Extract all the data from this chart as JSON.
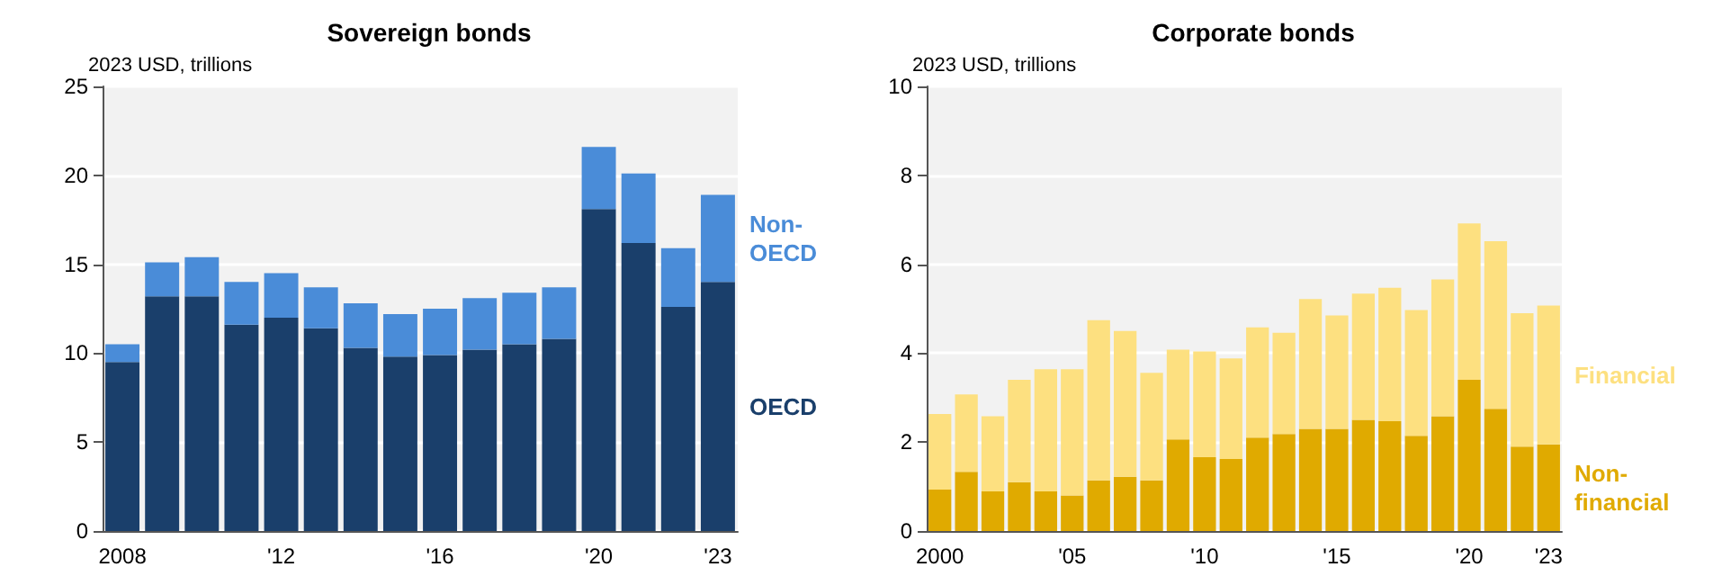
{
  "chart_data": [
    {
      "type": "bar",
      "title": "Sovereign bonds",
      "ylabel": "2023 USD, trillions",
      "categories": [
        "2008",
        null,
        null,
        null,
        "'12",
        null,
        null,
        null,
        "'16",
        null,
        null,
        null,
        "'20",
        null,
        null,
        "'23"
      ],
      "stacked": true,
      "ylim": [
        0,
        25
      ],
      "yticks": [
        0,
        5,
        10,
        15,
        20,
        25
      ],
      "grid": "y",
      "legend": "right",
      "series": [
        {
          "name": "OECD",
          "color": "#1a3f6b",
          "values": [
            9.5,
            13.2,
            13.2,
            11.6,
            12.0,
            11.4,
            10.3,
            9.8,
            9.9,
            10.2,
            10.5,
            10.8,
            18.1,
            16.2,
            12.6,
            14.0
          ]
        },
        {
          "name": "Non-OECD",
          "color": "#4a8cd8",
          "values": [
            1.0,
            1.9,
            2.2,
            2.4,
            2.5,
            2.3,
            2.5,
            2.4,
            2.6,
            2.9,
            2.9,
            2.9,
            3.5,
            3.9,
            3.3,
            4.9
          ]
        }
      ]
    },
    {
      "type": "bar",
      "title": "Corporate bonds",
      "ylabel": "2023 USD, trillions",
      "categories": [
        "2000",
        null,
        null,
        null,
        null,
        "'05",
        null,
        null,
        null,
        null,
        "'10",
        null,
        null,
        null,
        null,
        "'15",
        null,
        null,
        null,
        null,
        "'20",
        null,
        null,
        "'23"
      ],
      "stacked": true,
      "ylim": [
        0,
        10
      ],
      "yticks": [
        0,
        2,
        4,
        6,
        8,
        10
      ],
      "grid": "y",
      "legend": "right",
      "series": [
        {
          "name": "Non-financial",
          "color": "#e0aa00",
          "values": [
            0.93,
            1.33,
            0.89,
            1.1,
            0.89,
            0.8,
            1.14,
            1.22,
            1.14,
            2.06,
            1.66,
            1.62,
            2.1,
            2.18,
            2.3,
            2.3,
            2.5,
            2.47,
            2.14,
            2.58,
            3.4,
            2.75,
            1.9,
            1.95
          ]
        },
        {
          "name": "Financial",
          "color": "#fde080",
          "values": [
            1.7,
            1.74,
            1.69,
            2.3,
            2.75,
            2.84,
            3.6,
            3.28,
            2.42,
            2.02,
            2.38,
            2.26,
            2.48,
            2.28,
            2.92,
            2.55,
            2.84,
            3.0,
            2.83,
            3.08,
            3.52,
            3.77,
            3.0,
            3.12
          ]
        }
      ]
    }
  ]
}
